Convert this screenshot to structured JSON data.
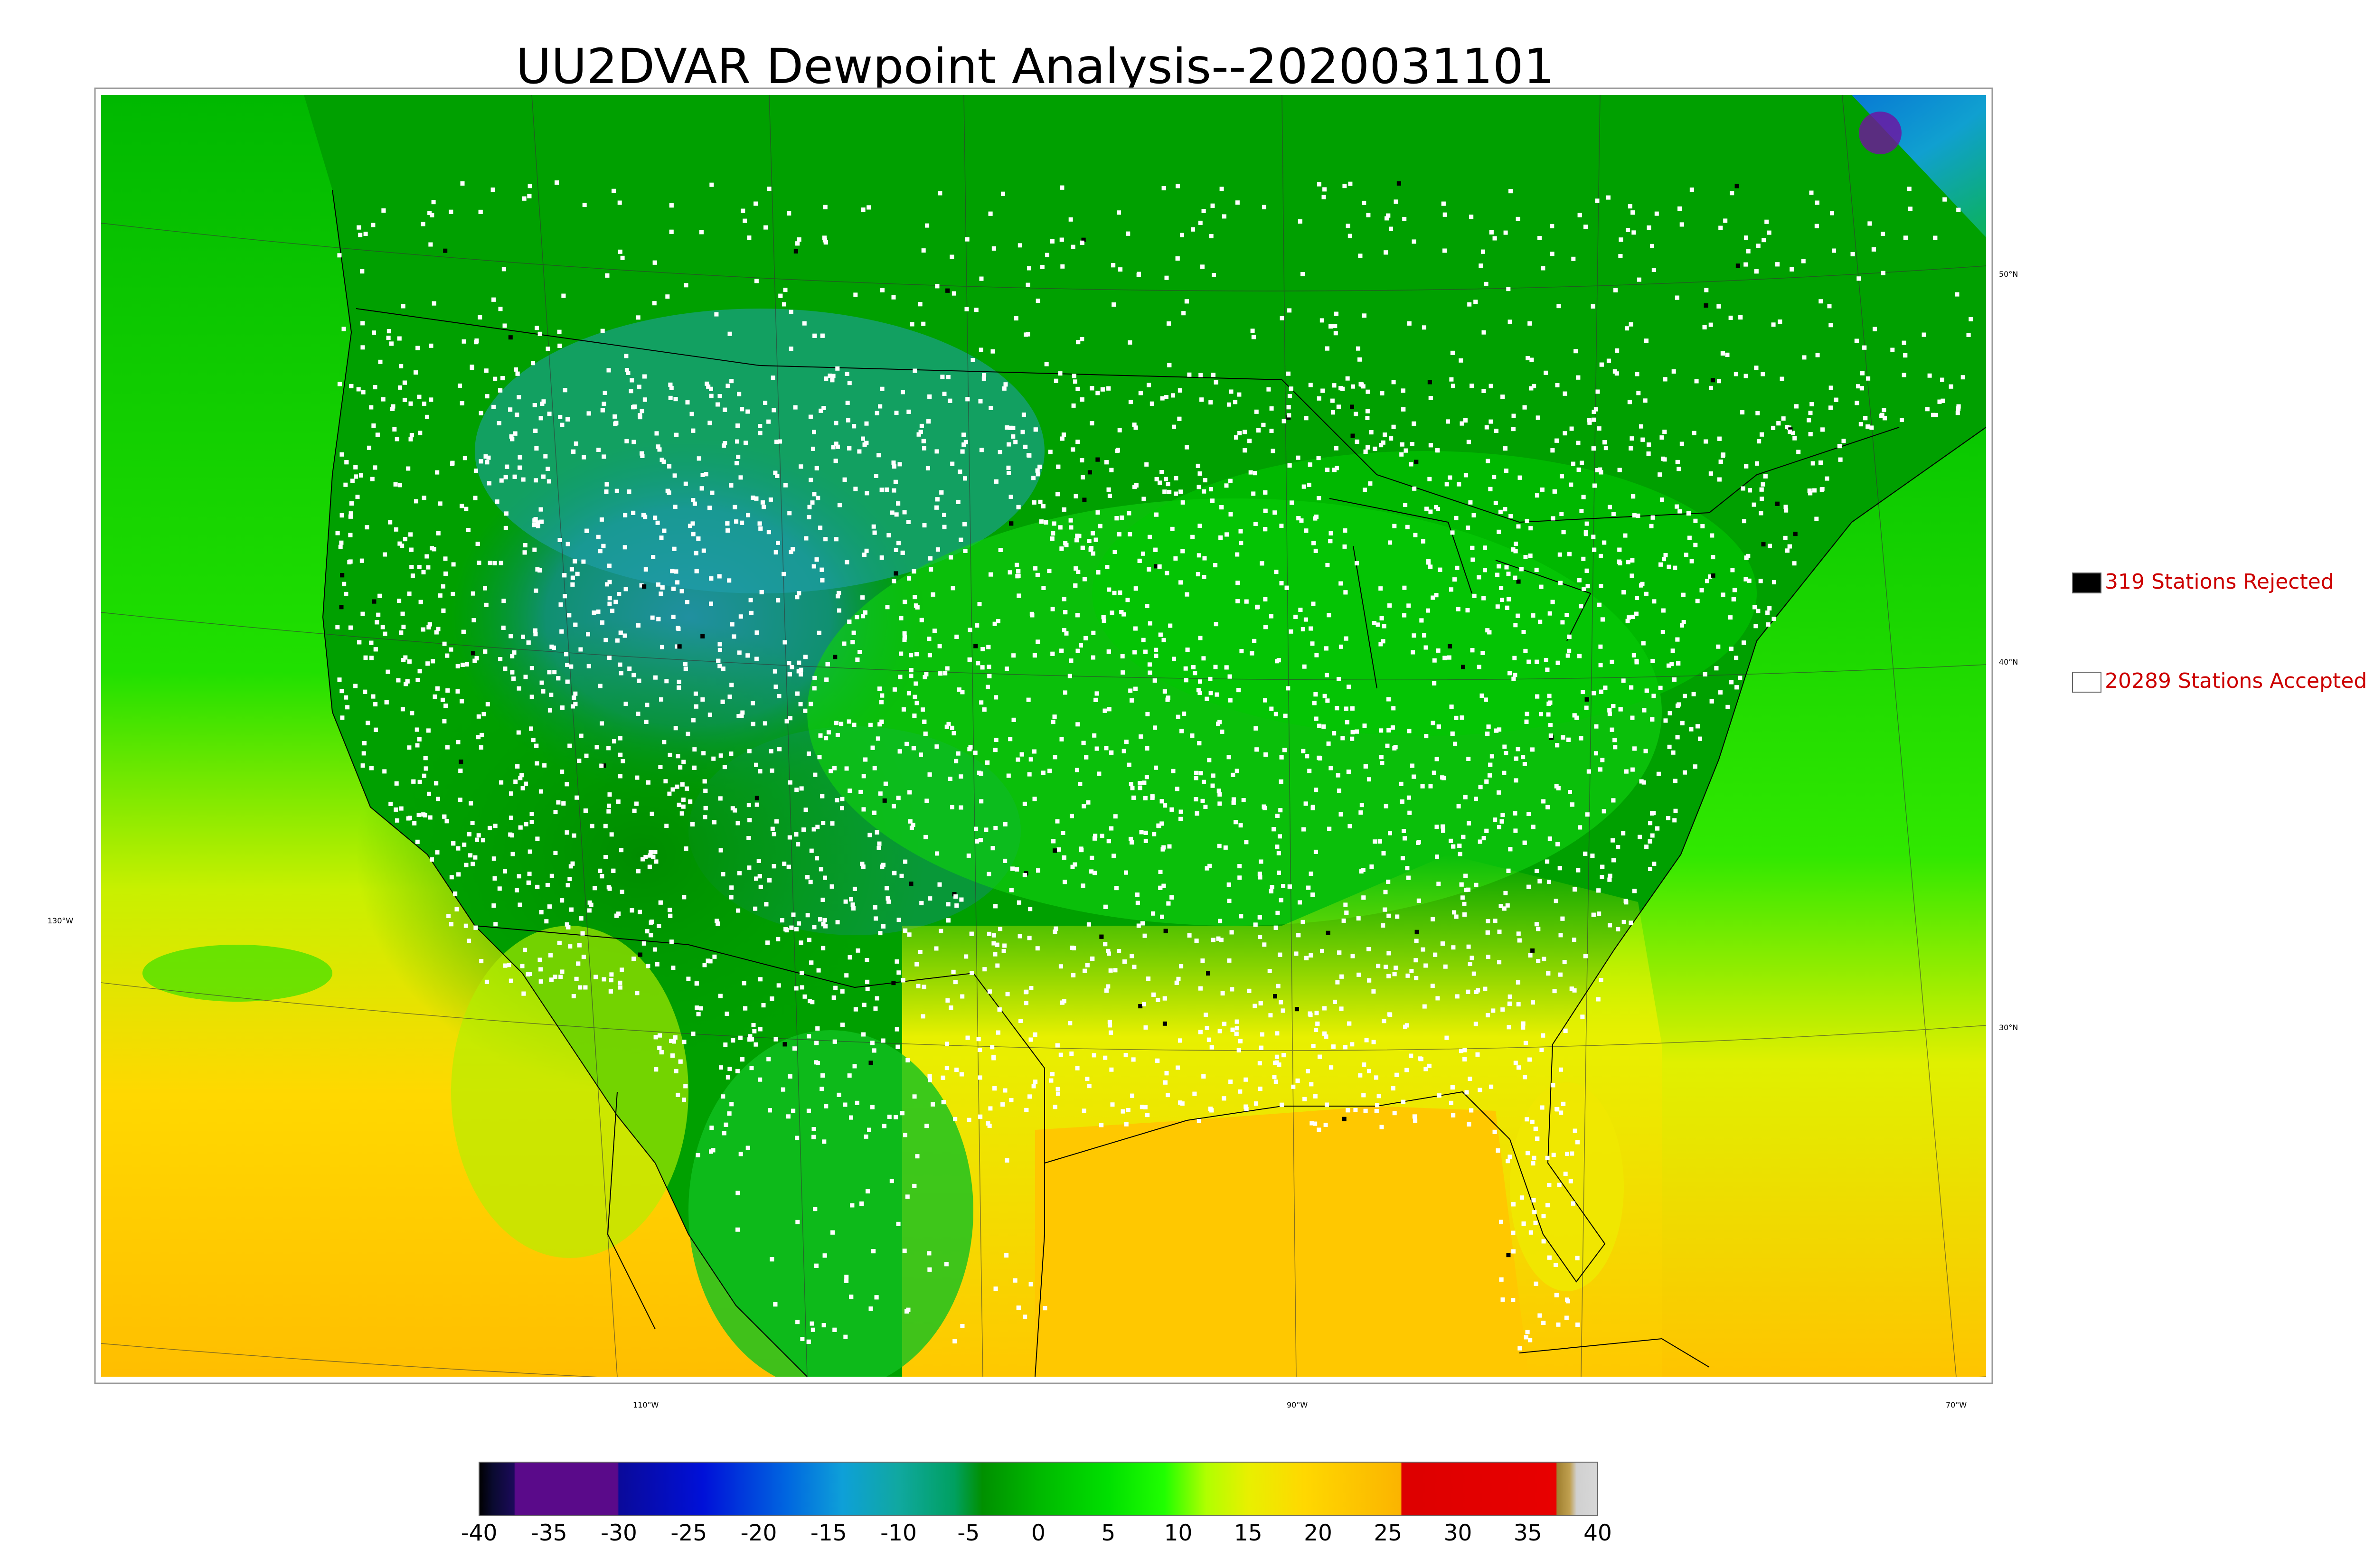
{
  "title": "UU2DVAR Dewpoint Analysis--2020031101",
  "legend": {
    "rejected": {
      "label": "319 Stations Rejected",
      "swatch_color": "#000000",
      "text_color": "#cc0000"
    },
    "accepted": {
      "label": "20289 Stations Accepted",
      "swatch_color": "#ffffff",
      "text_color": "#cc0000"
    }
  },
  "latitude_labels": [
    "50°N",
    "40°N",
    "30°N"
  ],
  "longitude_labels": [
    "130°W",
    "110°W",
    "90°W",
    "70°W"
  ],
  "colorbar": {
    "tick_labels": [
      "-40",
      "-35",
      "-30",
      "-25",
      "-20",
      "-15",
      "-10",
      "-5",
      "0",
      "5",
      "10",
      "15",
      "20",
      "25",
      "30",
      "35",
      "40"
    ],
    "range": [
      -40,
      40
    ],
    "stops": [
      {
        "v": -40,
        "c": "#000000"
      },
      {
        "v": -39,
        "c": "#0a0a30"
      },
      {
        "v": -37.5,
        "c": "#1b0a5a"
      },
      {
        "v": -37.4,
        "c": "#5a0a8a"
      },
      {
        "v": -30.1,
        "c": "#5a0a8a"
      },
      {
        "v": -30,
        "c": "#0a0a9a"
      },
      {
        "v": -24,
        "c": "#0010d8"
      },
      {
        "v": -18,
        "c": "#0066e0"
      },
      {
        "v": -14,
        "c": "#0ea0d8"
      },
      {
        "v": -10,
        "c": "#10a8a0"
      },
      {
        "v": -6,
        "c": "#00a060"
      },
      {
        "v": -4,
        "c": "#009000"
      },
      {
        "v": 0,
        "c": "#00b800"
      },
      {
        "v": 5,
        "c": "#00e000"
      },
      {
        "v": 9,
        "c": "#20ff00"
      },
      {
        "v": 12,
        "c": "#b0ff00"
      },
      {
        "v": 15,
        "c": "#e8f000"
      },
      {
        "v": 19,
        "c": "#ffd800"
      },
      {
        "v": 25.9,
        "c": "#fbb400"
      },
      {
        "v": 26,
        "c": "#dd0000"
      },
      {
        "v": 37,
        "c": "#e80000"
      },
      {
        "v": 37.1,
        "c": "#a08030"
      },
      {
        "v": 38,
        "c": "#c0a050"
      },
      {
        "v": 38.5,
        "c": "#d0d0d0"
      },
      {
        "v": 40,
        "c": "#d8d8d8"
      }
    ]
  },
  "map_colors": {
    "ocean_north": "#00c000",
    "ocean_south": "#ffc800",
    "canada_east": "#0020c0",
    "canada_mid": "#10a0d0",
    "plains_dry": "#10a080",
    "gulf_moist": "#f8e000",
    "frame": "#999999",
    "station_accepted": "#ffffff",
    "station_rejected": "#000000"
  }
}
